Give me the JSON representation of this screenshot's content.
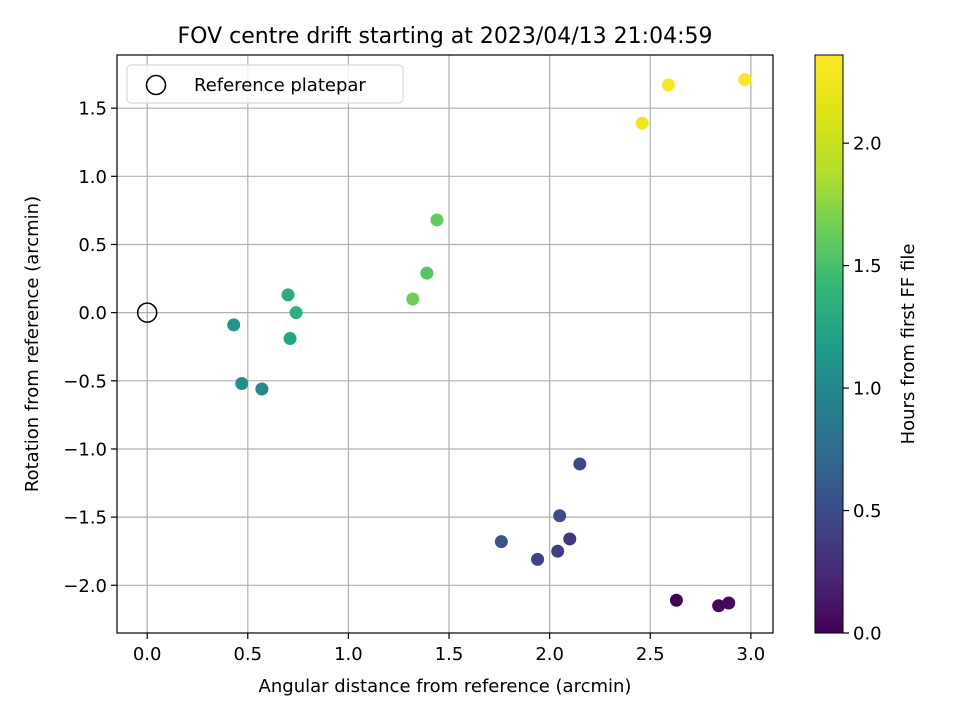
{
  "chart_data": {
    "type": "scatter",
    "title": "FOV centre drift starting at 2023/04/13 21:04:59",
    "xlabel": "Angular distance from reference (arcmin)",
    "ylabel": "Rotation from reference (arcmin)",
    "xlim": [
      -0.15,
      3.11
    ],
    "ylim": [
      -2.35,
      1.89
    ],
    "xticks": [
      0.0,
      0.5,
      1.0,
      1.5,
      2.0,
      2.5,
      3.0
    ],
    "xtick_labels": [
      "0.0",
      "0.5",
      "1.0",
      "1.5",
      "2.0",
      "2.5",
      "3.0"
    ],
    "yticks": [
      -2.0,
      -1.5,
      -1.0,
      -0.5,
      0.0,
      0.5,
      1.0,
      1.5
    ],
    "ytick_labels": [
      "−2.0",
      "−1.5",
      "−1.0",
      "−0.5",
      "0.0",
      "0.5",
      "1.0",
      "1.5"
    ],
    "grid": true,
    "legend": {
      "placement": "top-left",
      "entries": [
        "Reference platepar"
      ]
    },
    "reference_point": {
      "x": 0.0,
      "y": 0.0
    },
    "colormap": "viridis",
    "colorbar": {
      "label": "Hours from first FF file",
      "range": [
        0.0,
        2.36
      ],
      "ticks": [
        0.0,
        0.5,
        1.0,
        1.5,
        2.0
      ],
      "tick_labels": [
        "0.0",
        "0.5",
        "1.0",
        "1.5",
        "2.0"
      ]
    },
    "points": [
      {
        "x": 2.63,
        "y": -2.11,
        "c": 0.0
      },
      {
        "x": 2.84,
        "y": -2.15,
        "c": 0.03
      },
      {
        "x": 2.89,
        "y": -2.13,
        "c": 0.05
      },
      {
        "x": 2.1,
        "y": -1.66,
        "c": 0.35
      },
      {
        "x": 2.04,
        "y": -1.75,
        "c": 0.4
      },
      {
        "x": 1.94,
        "y": -1.81,
        "c": 0.45
      },
      {
        "x": 2.15,
        "y": -1.11,
        "c": 0.45
      },
      {
        "x": 2.05,
        "y": -1.49,
        "c": 0.5
      },
      {
        "x": 1.76,
        "y": -1.68,
        "c": 0.55
      },
      {
        "x": 0.57,
        "y": -0.56,
        "c": 1.0
      },
      {
        "x": 0.47,
        "y": -0.52,
        "c": 1.05
      },
      {
        "x": 0.43,
        "y": -0.09,
        "c": 1.1
      },
      {
        "x": 0.71,
        "y": -0.19,
        "c": 1.25
      },
      {
        "x": 0.7,
        "y": 0.13,
        "c": 1.3
      },
      {
        "x": 0.74,
        "y": 0.0,
        "c": 1.35
      },
      {
        "x": 1.39,
        "y": 0.29,
        "c": 1.55
      },
      {
        "x": 1.44,
        "y": 0.68,
        "c": 1.6
      },
      {
        "x": 1.32,
        "y": 0.1,
        "c": 1.65
      },
      {
        "x": 2.46,
        "y": 1.39,
        "c": 2.25
      },
      {
        "x": 2.59,
        "y": 1.67,
        "c": 2.3
      },
      {
        "x": 2.97,
        "y": 1.71,
        "c": 2.35
      }
    ]
  }
}
